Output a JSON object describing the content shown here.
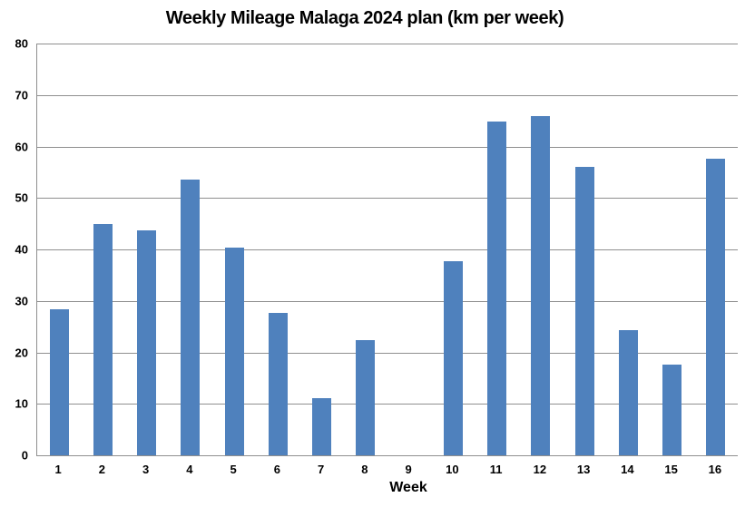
{
  "chart_data": {
    "type": "bar",
    "title": "Weekly Mileage Malaga 2024 plan (km per week)",
    "xlabel": "Week",
    "ylabel": "",
    "categories": [
      "1",
      "2",
      "3",
      "4",
      "5",
      "6",
      "7",
      "8",
      "9",
      "10",
      "11",
      "12",
      "13",
      "14",
      "15",
      "16"
    ],
    "values": [
      28.3,
      45.0,
      43.7,
      53.6,
      40.4,
      27.6,
      11.1,
      22.4,
      0,
      37.7,
      64.8,
      65.9,
      56.0,
      24.3,
      17.6,
      57.7
    ],
    "ylim": [
      0,
      80
    ],
    "yticks": [
      0,
      10,
      20,
      30,
      40,
      50,
      60,
      70,
      80
    ],
    "grid": true,
    "legend": "none",
    "colors": {
      "bar": "#4F81BD",
      "gridline": "#8F8F8F",
      "axis": "#8F8F8F",
      "text": "#000000",
      "background": "#FFFFFF"
    }
  }
}
